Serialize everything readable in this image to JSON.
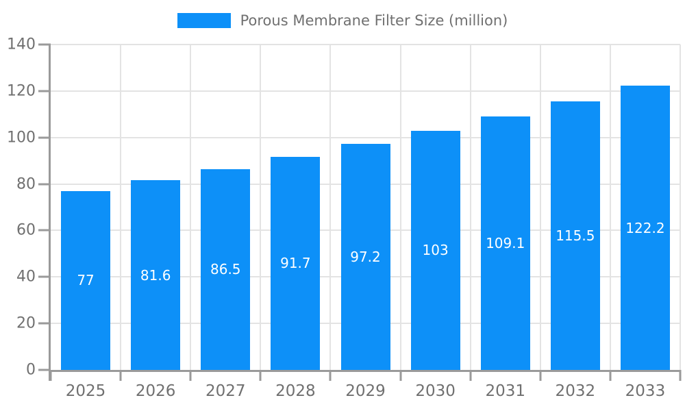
{
  "legend": {
    "label": "Porous Membrane Filter Size (million)"
  },
  "chart_data": {
    "type": "bar",
    "title": "Porous Membrane Filter Size (million)",
    "categories": [
      "2025",
      "2026",
      "2027",
      "2028",
      "2029",
      "2030",
      "2031",
      "2032",
      "2033"
    ],
    "values": [
      77,
      81.6,
      86.5,
      91.7,
      97.2,
      103,
      109.1,
      115.5,
      122.2
    ],
    "bar_labels": [
      "77",
      "81.6",
      "86.5",
      "91.7",
      "97.2",
      "103",
      "109.1",
      "115.5",
      "122.2"
    ],
    "xlabel": "",
    "ylabel": "",
    "ylim": [
      0,
      140
    ],
    "ytick_step": 20,
    "ytick_labels": [
      "0",
      "20",
      "40",
      "60",
      "80",
      "100",
      "120",
      "140"
    ],
    "grid": true,
    "legend_position": "top-center",
    "colors": {
      "bar": "#0d90f8",
      "grid": "#e3e3e3",
      "axis": "#9a9a9a",
      "tick_text": "#707070",
      "bar_label_text": "#ffffff",
      "background": "#ffffff"
    }
  }
}
